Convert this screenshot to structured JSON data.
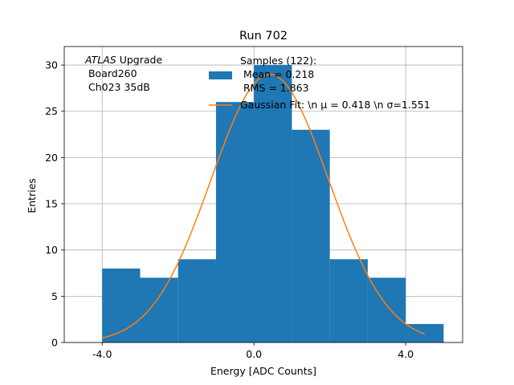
{
  "chart_data": {
    "type": "bar",
    "title": "Run 702",
    "xlabel": "Energy [ADC Counts]",
    "ylabel": "Entries",
    "xlim": [
      -5.0,
      5.5
    ],
    "ylim": [
      0,
      32
    ],
    "x_ticks": [
      -4.0,
      0.0,
      4.0
    ],
    "x_tick_labels": [
      "-4.0",
      "0.0",
      "4.0"
    ],
    "y_ticks": [
      0,
      5,
      10,
      15,
      20,
      25,
      30
    ],
    "y_tick_labels": [
      "0",
      "5",
      "10",
      "15",
      "20",
      "25",
      "30"
    ],
    "grid": true,
    "bins": [
      {
        "x0": -4,
        "x1": -3,
        "count": 8
      },
      {
        "x0": -3,
        "x1": -2,
        "count": 7
      },
      {
        "x0": -2,
        "x1": -1,
        "count": 9
      },
      {
        "x0": -1,
        "x1": 0,
        "count": 26
      },
      {
        "x0": 0,
        "x1": 1,
        "count": 30
      },
      {
        "x0": 1,
        "x1": 2,
        "count": 23
      },
      {
        "x0": 2,
        "x1": 3,
        "count": 9
      },
      {
        "x0": 3,
        "x1": 4,
        "count": 7
      },
      {
        "x0": 4,
        "x1": 5,
        "count": 2
      }
    ],
    "fit": {
      "type": "gaussian",
      "mu": 0.418,
      "sigma": 1.551,
      "amplitude": 29.0,
      "x_range": [
        -4.0,
        4.5
      ]
    },
    "series_colors": {
      "histogram": "#1f77b4",
      "fit": "#ff7f0e"
    },
    "annotation": {
      "experiment": "ATLAS",
      "experiment_suffix": " Upgrade",
      "line2": " Board260",
      "line3": " Ch023 35dB"
    },
    "legend": {
      "placement": "top-center",
      "histogram_lines": [
        "Samples (122):",
        " Mean = 0.218",
        " RMS = 1.863"
      ],
      "fit_label": "Gaussian Fit: \\n μ = 0.418 \\n σ=1.551"
    }
  }
}
